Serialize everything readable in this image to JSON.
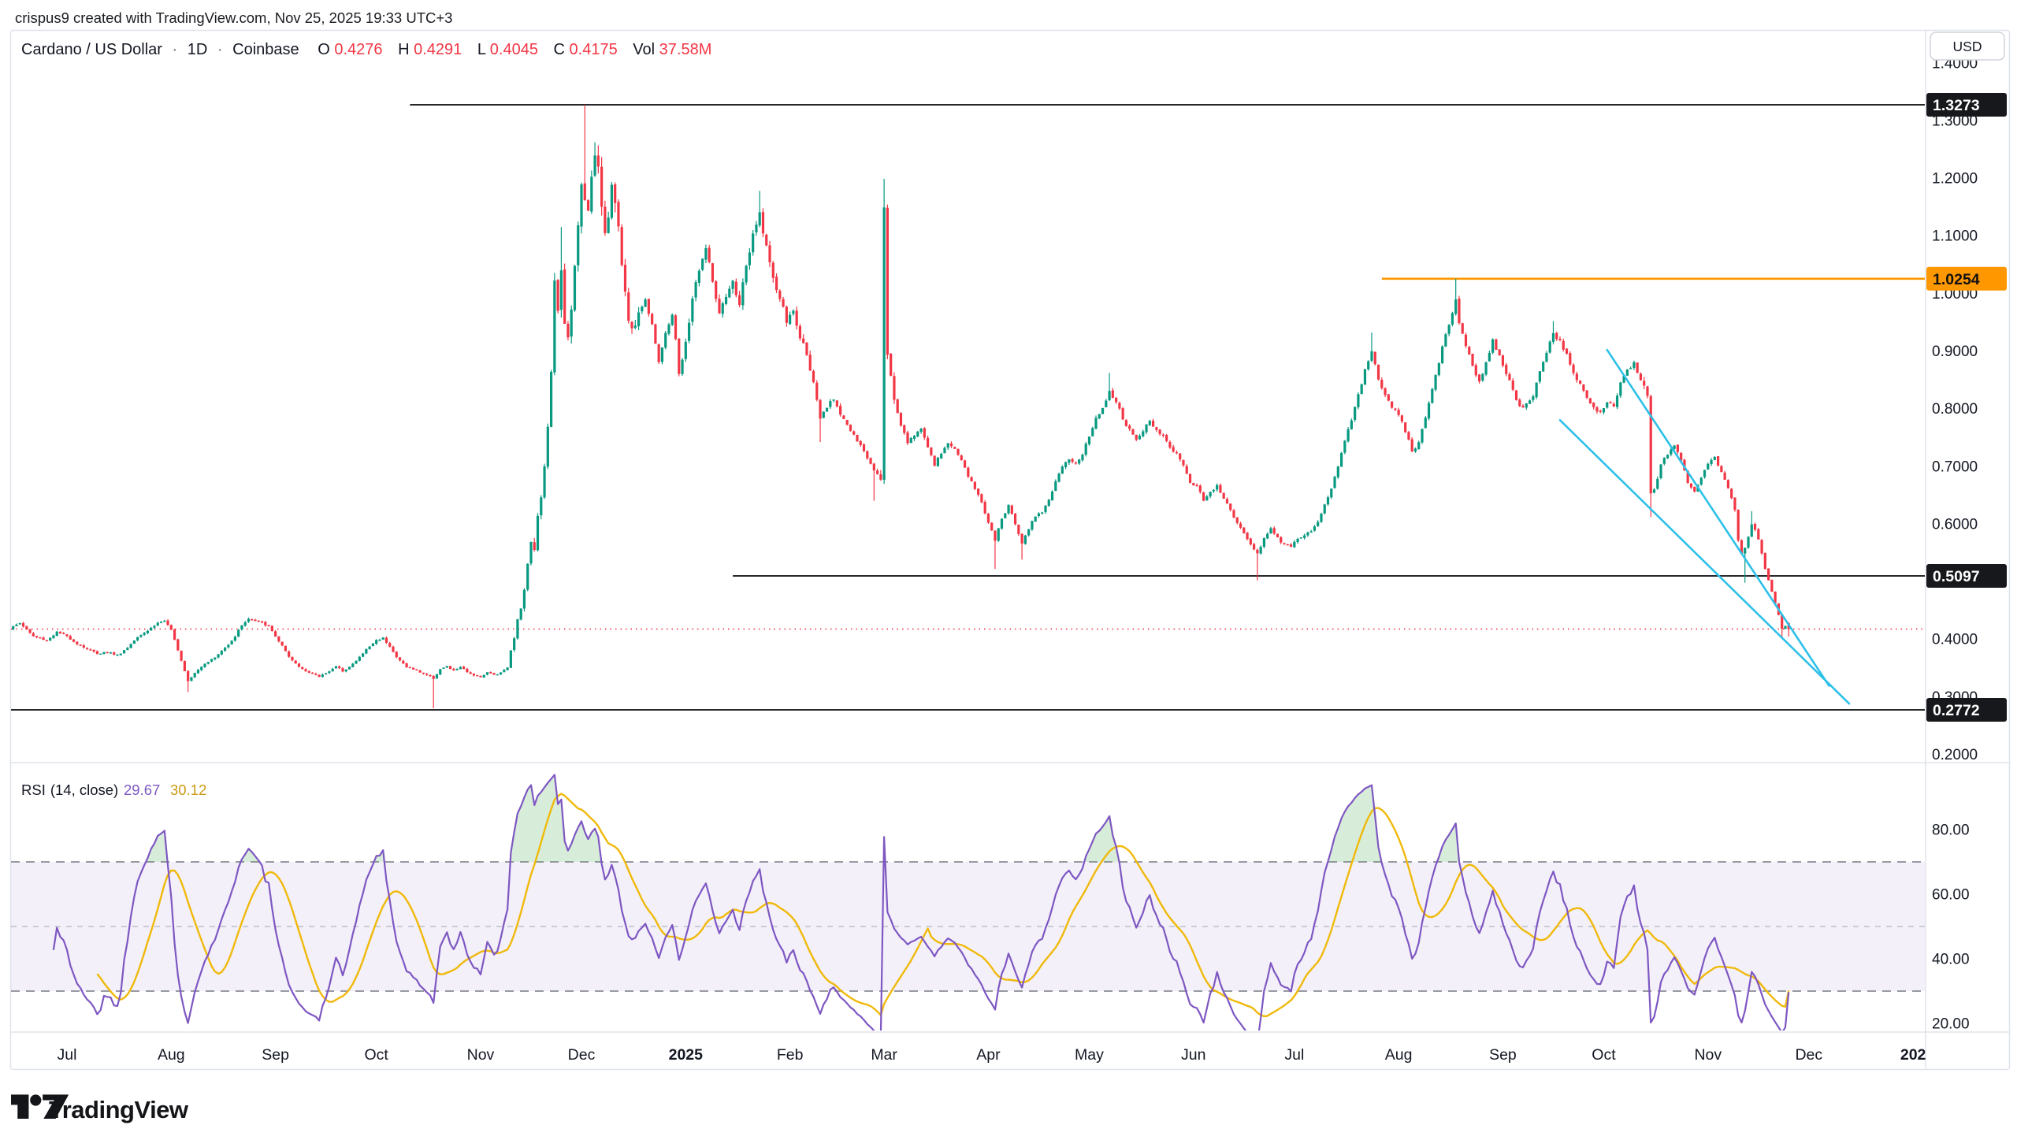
{
  "attribution": "crispus9 created with TradingView.com, Nov 25, 2025 19:33 UTC+3",
  "header": {
    "symbol": "Cardano / US Dollar",
    "separator": "·",
    "interval": "1D",
    "exchange": "Coinbase",
    "o_label": "O",
    "o_value": "0.4276",
    "h_label": "H",
    "h_value": "0.4291",
    "l_label": "L",
    "l_value": "0.4045",
    "c_label": "C",
    "c_value": "0.4175",
    "vol_label": "Vol",
    "vol_value": "37.58M"
  },
  "axis": {
    "currency_button": "USD",
    "price_ticks": [
      "1.4000",
      "1.3000",
      "1.2000",
      "1.1000",
      "1.0000",
      "0.9000",
      "0.8000",
      "0.7000",
      "0.6000",
      "0.5000",
      "0.4000",
      "0.3000",
      "0.2000"
    ],
    "rsi_ticks": [
      "80.00",
      "60.00",
      "40.00",
      "20.00"
    ],
    "months": [
      {
        "label": "Jul",
        "day": 0,
        "bold": false
      },
      {
        "label": "Aug",
        "day": 31,
        "bold": false
      },
      {
        "label": "Sep",
        "day": 62,
        "bold": false
      },
      {
        "label": "Oct",
        "day": 92,
        "bold": false
      },
      {
        "label": "Nov",
        "day": 123,
        "bold": false
      },
      {
        "label": "Dec",
        "day": 153,
        "bold": false
      },
      {
        "label": "2025",
        "day": 184,
        "bold": true
      },
      {
        "label": "Feb",
        "day": 215,
        "bold": false
      },
      {
        "label": "Mar",
        "day": 243,
        "bold": false
      },
      {
        "label": "Apr",
        "day": 274,
        "bold": false
      },
      {
        "label": "May",
        "day": 304,
        "bold": false
      },
      {
        "label": "Jun",
        "day": 335,
        "bold": false
      },
      {
        "label": "Jul",
        "day": 365,
        "bold": false
      },
      {
        "label": "Aug",
        "day": 396,
        "bold": false
      },
      {
        "label": "Sep",
        "day": 427,
        "bold": false
      },
      {
        "label": "Oct",
        "day": 457,
        "bold": false
      },
      {
        "label": "Nov",
        "day": 488,
        "bold": false
      },
      {
        "label": "Dec",
        "day": 518,
        "bold": false
      },
      {
        "label": "202",
        "day": 549,
        "bold": true
      }
    ]
  },
  "rsi_panel": {
    "title": "RSI",
    "params": "(14, close)",
    "rsi_value": "29.67",
    "ma_value": "30.12"
  },
  "logo": {
    "text": "TradingView"
  },
  "colors": {
    "up": "#089981",
    "down": "#F23645",
    "text": "#131722",
    "muted_border": "#E0E3EB",
    "rsi_line": "#7E57C2",
    "rsi_ma": "#F0B90B",
    "rsi_band_fill": "#7E57C2",
    "rsi_limit": "#787B86",
    "rsi_mid": "#B2B5BE",
    "overbought_fill": "#4CAF50",
    "level_black": "#17181B",
    "level_orange": "#FF9800",
    "wedge": "#2DC0E8",
    "last_price": "#F23645"
  },
  "chart_data": {
    "type": "candlestick",
    "symbol": "ADAUSD",
    "interval": "1D",
    "exchange": "Coinbase",
    "last_candle": {
      "open": 0.4276,
      "high": 0.4291,
      "low": 0.4045,
      "close": 0.4175,
      "volume": "37.58M"
    },
    "y_axis_range": [
      0.2,
      1.4
    ],
    "x_axis_range": "Jun 2024 - Dec 2025 (day 0 = Jul 1, 2024; last bar day 512 = Nov 25, 2025)",
    "grid": false,
    "horizontal_levels": [
      {
        "price": 1.3273,
        "label": "1.3273",
        "badge": "black",
        "from_day": 102
      },
      {
        "price": 1.0254,
        "label": "1.0254",
        "badge": "orange",
        "from_day": 391
      },
      {
        "price": 0.5097,
        "label": "0.5097",
        "badge": "black",
        "from_day": 198
      },
      {
        "price": 0.2772,
        "label": "0.2772",
        "badge": "black",
        "from_day": null
      }
    ],
    "last_price_line": {
      "price": 0.4175,
      "style": "dotted"
    },
    "wedge_lines": [
      {
        "d1": 458,
        "p1": 0.902,
        "d2": 524,
        "p2": 0.319
      },
      {
        "d1": 444,
        "p1": 0.78,
        "d2": 530,
        "p2": 0.288
      }
    ],
    "price_anchors": [
      [
        -18,
        0.415
      ],
      [
        -14,
        0.428
      ],
      [
        -10,
        0.405
      ],
      [
        -6,
        0.398
      ],
      [
        -3,
        0.412
      ],
      [
        0,
        0.405
      ],
      [
        3,
        0.392
      ],
      [
        6,
        0.383
      ],
      [
        9,
        0.375
      ],
      [
        12,
        0.378
      ],
      [
        15,
        0.372
      ],
      [
        18,
        0.385
      ],
      [
        21,
        0.405
      ],
      [
        24,
        0.415
      ],
      [
        27,
        0.428
      ],
      [
        29,
        0.432
      ],
      [
        31,
        0.415
      ],
      [
        33,
        0.382
      ],
      [
        35,
        0.345
      ],
      [
        36,
        0.328
      ],
      [
        38,
        0.342
      ],
      [
        41,
        0.358
      ],
      [
        44,
        0.368
      ],
      [
        47,
        0.385
      ],
      [
        50,
        0.405
      ],
      [
        52,
        0.425
      ],
      [
        54,
        0.435
      ],
      [
        56,
        0.432
      ],
      [
        58,
        0.428
      ],
      [
        60,
        0.422
      ],
      [
        62,
        0.405
      ],
      [
        64,
        0.388
      ],
      [
        66,
        0.368
      ],
      [
        69,
        0.352
      ],
      [
        72,
        0.342
      ],
      [
        75,
        0.335
      ],
      [
        78,
        0.345
      ],
      [
        80,
        0.352
      ],
      [
        82,
        0.345
      ],
      [
        84,
        0.352
      ],
      [
        86,
        0.362
      ],
      [
        89,
        0.382
      ],
      [
        92,
        0.398
      ],
      [
        94,
        0.402
      ],
      [
        96,
        0.388
      ],
      [
        98,
        0.368
      ],
      [
        101,
        0.352
      ],
      [
        104,
        0.345
      ],
      [
        107,
        0.338
      ],
      [
        109,
        0.332
      ],
      [
        111,
        0.348
      ],
      [
        113,
        0.352
      ],
      [
        115,
        0.345
      ],
      [
        117,
        0.352
      ],
      [
        119,
        0.342
      ],
      [
        121,
        0.338
      ],
      [
        123,
        0.335
      ],
      [
        125,
        0.342
      ],
      [
        127,
        0.338
      ],
      [
        129,
        0.342
      ],
      [
        131,
        0.352
      ],
      [
        132,
        0.378
      ],
      [
        133,
        0.405
      ],
      [
        134,
        0.432
      ],
      [
        135,
        0.455
      ],
      [
        136,
        0.482
      ],
      [
        137,
        0.535
      ],
      [
        138,
        0.572
      ],
      [
        139,
        0.558
      ],
      [
        140,
        0.612
      ],
      [
        141,
        0.648
      ],
      [
        142,
        0.695
      ],
      [
        143,
        0.772
      ],
      [
        144,
        0.858
      ],
      [
        145,
        1.015
      ],
      [
        146,
        0.975
      ],
      [
        147,
        1.048
      ],
      [
        148,
        0.942
      ],
      [
        149,
        0.918
      ],
      [
        150,
        0.968
      ],
      [
        151,
        1.045
      ],
      [
        152,
        1.118
      ],
      [
        153,
        1.185
      ],
      [
        154,
        1.172
      ],
      [
        155,
        1.135
      ],
      [
        156,
        1.192
      ],
      [
        157,
        1.248
      ],
      [
        158,
        1.225
      ],
      [
        159,
        1.162
      ],
      [
        160,
        1.105
      ],
      [
        161,
        1.142
      ],
      [
        162,
        1.185
      ],
      [
        163,
        1.158
      ],
      [
        164,
        1.105
      ],
      [
        165,
        1.052
      ],
      [
        166,
        1.002
      ],
      [
        167,
        0.962
      ],
      [
        168,
        0.932
      ],
      [
        170,
        0.968
      ],
      [
        172,
        0.988
      ],
      [
        174,
        0.948
      ],
      [
        176,
        0.882
      ],
      [
        178,
        0.928
      ],
      [
        180,
        0.965
      ],
      [
        181,
        0.922
      ],
      [
        182,
        0.858
      ],
      [
        184,
        0.912
      ],
      [
        186,
        0.992
      ],
      [
        188,
        1.042
      ],
      [
        190,
        1.078
      ],
      [
        192,
        1.022
      ],
      [
        194,
        0.962
      ],
      [
        196,
        0.992
      ],
      [
        198,
        1.018
      ],
      [
        200,
        0.982
      ],
      [
        202,
        1.048
      ],
      [
        204,
        1.098
      ],
      [
        206,
        1.138
      ],
      [
        208,
        1.082
      ],
      [
        210,
        1.022
      ],
      [
        212,
        0.992
      ],
      [
        214,
        0.952
      ],
      [
        216,
        0.968
      ],
      [
        218,
        0.922
      ],
      [
        220,
        0.898
      ],
      [
        222,
        0.842
      ],
      [
        224,
        0.782
      ],
      [
        226,
        0.802
      ],
      [
        228,
        0.818
      ],
      [
        230,
        0.792
      ],
      [
        232,
        0.772
      ],
      [
        234,
        0.752
      ],
      [
        236,
        0.735
      ],
      [
        238,
        0.715
      ],
      [
        240,
        0.695
      ],
      [
        242,
        0.682
      ],
      [
        243,
        1.148
      ],
      [
        244,
        0.892
      ],
      [
        245,
        0.858
      ],
      [
        246,
        0.818
      ],
      [
        248,
        0.772
      ],
      [
        250,
        0.742
      ],
      [
        252,
        0.752
      ],
      [
        254,
        0.768
      ],
      [
        256,
        0.732
      ],
      [
        258,
        0.702
      ],
      [
        260,
        0.722
      ],
      [
        262,
        0.742
      ],
      [
        264,
        0.728
      ],
      [
        266,
        0.712
      ],
      [
        268,
        0.682
      ],
      [
        270,
        0.662
      ],
      [
        272,
        0.638
      ],
      [
        274,
        0.602
      ],
      [
        276,
        0.572
      ],
      [
        278,
        0.608
      ],
      [
        280,
        0.632
      ],
      [
        282,
        0.6
      ],
      [
        284,
        0.568
      ],
      [
        286,
        0.592
      ],
      [
        288,
        0.615
      ],
      [
        290,
        0.622
      ],
      [
        292,
        0.642
      ],
      [
        294,
        0.672
      ],
      [
        296,
        0.698
      ],
      [
        298,
        0.712
      ],
      [
        300,
        0.705
      ],
      [
        302,
        0.722
      ],
      [
        304,
        0.752
      ],
      [
        306,
        0.782
      ],
      [
        308,
        0.802
      ],
      [
        310,
        0.832
      ],
      [
        312,
        0.812
      ],
      [
        314,
        0.782
      ],
      [
        316,
        0.762
      ],
      [
        318,
        0.745
      ],
      [
        320,
        0.762
      ],
      [
        322,
        0.778
      ],
      [
        324,
        0.765
      ],
      [
        326,
        0.752
      ],
      [
        328,
        0.732
      ],
      [
        330,
        0.722
      ],
      [
        332,
        0.702
      ],
      [
        334,
        0.672
      ],
      [
        336,
        0.665
      ],
      [
        338,
        0.642
      ],
      [
        340,
        0.655
      ],
      [
        342,
        0.668
      ],
      [
        344,
        0.645
      ],
      [
        346,
        0.622
      ],
      [
        348,
        0.602
      ],
      [
        350,
        0.585
      ],
      [
        352,
        0.565
      ],
      [
        354,
        0.548
      ],
      [
        356,
        0.575
      ],
      [
        358,
        0.592
      ],
      [
        360,
        0.575
      ],
      [
        362,
        0.565
      ],
      [
        364,
        0.562
      ],
      [
        366,
        0.572
      ],
      [
        368,
        0.582
      ],
      [
        370,
        0.588
      ],
      [
        372,
        0.602
      ],
      [
        374,
        0.632
      ],
      [
        376,
        0.662
      ],
      [
        378,
        0.702
      ],
      [
        380,
        0.742
      ],
      [
        382,
        0.782
      ],
      [
        384,
        0.822
      ],
      [
        386,
        0.868
      ],
      [
        388,
        0.898
      ],
      [
        390,
        0.852
      ],
      [
        392,
        0.822
      ],
      [
        394,
        0.802
      ],
      [
        396,
        0.788
      ],
      [
        398,
        0.762
      ],
      [
        400,
        0.725
      ],
      [
        402,
        0.742
      ],
      [
        404,
        0.782
      ],
      [
        406,
        0.832
      ],
      [
        408,
        0.882
      ],
      [
        410,
        0.928
      ],
      [
        412,
        0.968
      ],
      [
        413,
        0.988
      ],
      [
        414,
        0.952
      ],
      [
        416,
        0.912
      ],
      [
        418,
        0.875
      ],
      [
        420,
        0.845
      ],
      [
        422,
        0.882
      ],
      [
        424,
        0.918
      ],
      [
        426,
        0.892
      ],
      [
        428,
        0.862
      ],
      [
        430,
        0.832
      ],
      [
        432,
        0.802
      ],
      [
        434,
        0.808
      ],
      [
        436,
        0.822
      ],
      [
        438,
        0.862
      ],
      [
        440,
        0.898
      ],
      [
        442,
        0.928
      ],
      [
        444,
        0.918
      ],
      [
        446,
        0.892
      ],
      [
        448,
        0.862
      ],
      [
        450,
        0.842
      ],
      [
        452,
        0.822
      ],
      [
        454,
        0.802
      ],
      [
        456,
        0.792
      ],
      [
        458,
        0.812
      ],
      [
        460,
        0.802
      ],
      [
        462,
        0.842
      ],
      [
        464,
        0.868
      ],
      [
        466,
        0.878
      ],
      [
        468,
        0.852
      ],
      [
        470,
        0.825
      ],
      [
        471,
        0.652
      ],
      [
        472,
        0.662
      ],
      [
        474,
        0.702
      ],
      [
        476,
        0.722
      ],
      [
        478,
        0.735
      ],
      [
        480,
        0.712
      ],
      [
        482,
        0.672
      ],
      [
        484,
        0.655
      ],
      [
        486,
        0.682
      ],
      [
        488,
        0.702
      ],
      [
        490,
        0.715
      ],
      [
        492,
        0.692
      ],
      [
        494,
        0.662
      ],
      [
        496,
        0.625
      ],
      [
        497,
        0.572
      ],
      [
        498,
        0.548
      ],
      [
        499,
        0.558
      ],
      [
        500,
        0.578
      ],
      [
        501,
        0.598
      ],
      [
        502,
        0.588
      ],
      [
        503,
        0.575
      ],
      [
        504,
        0.548
      ],
      [
        505,
        0.522
      ],
      [
        506,
        0.502
      ],
      [
        507,
        0.482
      ],
      [
        508,
        0.462
      ],
      [
        509,
        0.442
      ],
      [
        510,
        0.418
      ],
      [
        511,
        0.423
      ],
      [
        512,
        0.4175
      ]
    ],
    "wick_events": {
      "36": {
        "l": 0.308
      },
      "109": {
        "l": 0.28
      },
      "147": {
        "h": 1.115
      },
      "154": {
        "h": 1.3273
      },
      "157": {
        "h": 1.262
      },
      "206": {
        "h": 1.178
      },
      "224": {
        "l": 0.742
      },
      "240": {
        "l": 0.64
      },
      "243": {
        "h": 1.199
      },
      "276": {
        "l": 0.522
      },
      "284": {
        "l": 0.538
      },
      "310": {
        "h": 0.862
      },
      "354": {
        "l": 0.502
      },
      "388": {
        "h": 0.932
      },
      "413": {
        "h": 1.0254
      },
      "442": {
        "h": 0.952
      },
      "471": {
        "l": 0.612
      },
      "499": {
        "l": 0.498
      },
      "501": {
        "h": 0.622
      },
      "510": {
        "l": 0.4005
      }
    },
    "rsi": {
      "period": 14,
      "source": "close",
      "ma_period": 14,
      "current_rsi": 29.67,
      "current_ma": 30.12,
      "upper_limit": 70,
      "lower_limit": 30,
      "middle": 50,
      "overbought_zones": [
        "Nov-Dec 2024",
        "Jul-Aug 2025"
      ]
    }
  }
}
